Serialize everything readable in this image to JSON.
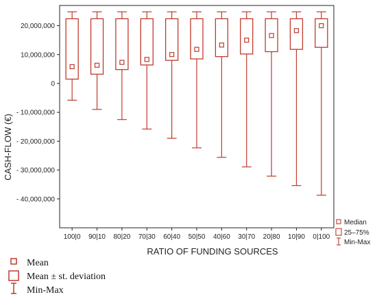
{
  "chart_data": {
    "type": "box",
    "xlabel": "RATIO OF FUNDING SOURCES",
    "ylabel": "CASH-FLOW (€)",
    "ylim": [
      -50000000,
      27000000
    ],
    "yticks": [
      20000000,
      10000000,
      0,
      -10000000,
      -20000000,
      -30000000,
      -40000000
    ],
    "ytick_labels": [
      "20,000,000",
      "10,000,000",
      "0",
      "- 10,000,000",
      "- 20,000,000",
      "- 30,000,000",
      "- 40,000,000"
    ],
    "categories": [
      "100|0",
      "90|10",
      "80|20",
      "70|30",
      "60|40",
      "50|50",
      "40|60",
      "30|70",
      "20|80",
      "10|90",
      "0|100"
    ],
    "series": [
      {
        "name": "Median",
        "values": [
          5800000,
          6300000,
          7300000,
          8300000,
          10000000,
          11800000,
          13300000,
          15000000,
          16600000,
          18300000,
          20000000
        ]
      },
      {
        "name": "25–75% (lower)",
        "values": [
          1500000,
          3200000,
          4800000,
          6400000,
          8000000,
          8500000,
          9300000,
          10200000,
          11000000,
          11800000,
          12500000
        ]
      },
      {
        "name": "25–75% (upper)",
        "values": [
          22400000,
          22400000,
          22400000,
          22400000,
          22400000,
          22400000,
          22400000,
          22400000,
          22400000,
          22400000,
          22400000
        ]
      },
      {
        "name": "Min",
        "values": [
          -5800000,
          -9000000,
          -12500000,
          -15800000,
          -19000000,
          -22300000,
          -25600000,
          -28900000,
          -32100000,
          -35400000,
          -38700000
        ]
      },
      {
        "name": "Max",
        "values": [
          24800000,
          24800000,
          24800000,
          24800000,
          24800000,
          24800000,
          24800000,
          24800000,
          24800000,
          24800000,
          24800000
        ]
      }
    ],
    "legend_inner": [
      "Median",
      "25–75%",
      "Min-Max"
    ],
    "legend_inner_position": "bottom-right",
    "legend_outer": [
      "Mean",
      "Mean ± st. deviation",
      "Min-Max"
    ],
    "legend_outer_position": "below",
    "grid": false,
    "colors": {
      "box": "#c0392b",
      "axis": "#222222"
    }
  }
}
